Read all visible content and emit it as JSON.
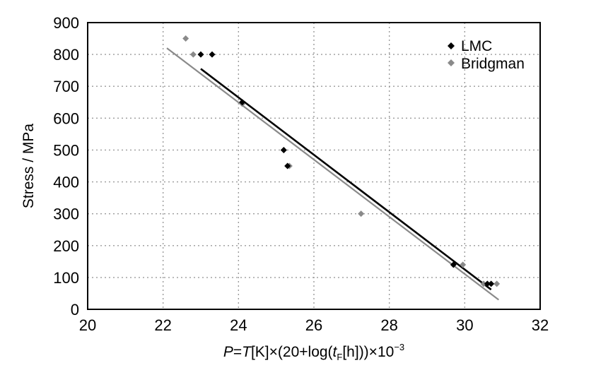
{
  "chart_data": {
    "type": "scatter",
    "title": "",
    "xlabel": "",
    "ylabel": "Stress / MPa",
    "xlim": [
      20,
      32
    ],
    "ylim": [
      0,
      900
    ],
    "xticks": [
      20,
      22,
      24,
      26,
      28,
      30,
      32
    ],
    "yticks": [
      0,
      100,
      200,
      300,
      400,
      500,
      600,
      700,
      800,
      900
    ],
    "grid": true,
    "legend_position": "top-right",
    "xlabel_parts": {
      "p": "P",
      "eq": "=",
      "t": "T",
      "mid": "[K]×(20+log(",
      "tf": "t",
      "sub": "F",
      "h": "[h]))×10",
      "exp": "−3"
    },
    "series": [
      {
        "name": "LMC",
        "marker": "diamond",
        "color": "#000000",
        "points": [
          {
            "x": 23.0,
            "y": 800
          },
          {
            "x": 23.3,
            "y": 800
          },
          {
            "x": 24.1,
            "y": 650
          },
          {
            "x": 25.2,
            "y": 500
          },
          {
            "x": 25.3,
            "y": 450
          },
          {
            "x": 29.7,
            "y": 140
          },
          {
            "x": 30.6,
            "y": 80
          },
          {
            "x": 30.7,
            "y": 80
          }
        ],
        "fit": {
          "x": [
            23.0,
            30.7
          ],
          "y": [
            755,
            62
          ]
        }
      },
      {
        "name": "Bridgman",
        "marker": "diamond",
        "color": "#8a8a8a",
        "points": [
          {
            "x": 22.6,
            "y": 850
          },
          {
            "x": 22.8,
            "y": 800
          },
          {
            "x": 24.1,
            "y": 645
          },
          {
            "x": 25.2,
            "y": 500
          },
          {
            "x": 25.35,
            "y": 450
          },
          {
            "x": 27.25,
            "y": 300
          },
          {
            "x": 29.95,
            "y": 140
          },
          {
            "x": 30.5,
            "y": 80
          },
          {
            "x": 30.85,
            "y": 80
          }
        ],
        "fit": {
          "x": [
            22.1,
            30.9
          ],
          "y": [
            820,
            30
          ]
        }
      }
    ]
  }
}
